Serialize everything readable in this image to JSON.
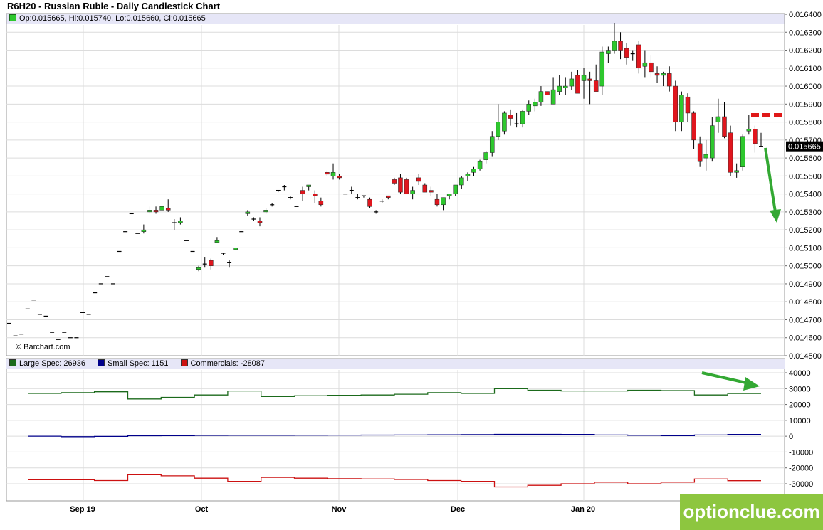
{
  "title": "R6H20 - Russian Ruble - Daily Candlestick Chart",
  "ohlc_readout": "Op:0.015665, Hi:0.015740, Lo:0.015660, Cl:0.015665",
  "copyright": "© Barchart.com",
  "watermark": "optionclue.com",
  "last_price_label": "0.015665",
  "colors": {
    "up": "#2ec82e",
    "down": "#e0161e",
    "wick": "#000000",
    "large_spec": "#1b6a1b",
    "small_spec": "#00008b",
    "commercials": "#cc1111",
    "grid": "#dcdcdc",
    "annotation_red": "#e01818",
    "annotation_green": "#33a833",
    "brand": "#8dc63f"
  },
  "cot_legend": [
    {
      "label": "Large Spec: 26936",
      "color": "#1b6a1b"
    },
    {
      "label": "Small Spec: 1151",
      "color": "#00008b"
    },
    {
      "label": "Commercials: -28087",
      "color": "#cc1111"
    }
  ],
  "chart_data": [
    {
      "type": "candlestick",
      "title": "R6H20 - Russian Ruble - Daily Candlestick Chart",
      "x_tick_labels": [
        "Sep 19",
        "Oct",
        "Nov",
        "Dec",
        "Jan 20"
      ],
      "ylim": [
        0.0145,
        0.0164
      ],
      "y_ticks": [
        0.0164,
        0.0163,
        0.0162,
        0.0161,
        0.016,
        0.0159,
        0.0158,
        0.0157,
        0.0156,
        0.0155,
        0.0154,
        0.0153,
        0.0152,
        0.0151,
        0.015,
        0.0149,
        0.0148,
        0.0147,
        0.0146,
        0.0145
      ],
      "y_tick_labels": [
        "0.016400",
        "0.016300",
        "0.016200",
        "0.016100",
        "0.016000",
        "0.015900",
        "0.015800",
        "0.015700",
        "0.015600",
        "0.015500",
        "0.015400",
        "0.015300",
        "0.015200",
        "0.015100",
        "0.015000",
        "0.014900",
        "0.014800",
        "0.014700",
        "0.014600",
        "0.014500"
      ],
      "grid": true,
      "last": 0.015665,
      "candles": [
        {
          "o": 0.01468,
          "h": 0.01468,
          "l": 0.01468,
          "c": 0.01468
        },
        {
          "o": 0.01461,
          "h": 0.01461,
          "l": 0.01461,
          "c": 0.01461
        },
        {
          "o": 0.01462,
          "h": 0.01462,
          "l": 0.01462,
          "c": 0.01462
        },
        {
          "o": 0.01476,
          "h": 0.01476,
          "l": 0.01476,
          "c": 0.01476
        },
        {
          "o": 0.01481,
          "h": 0.01481,
          "l": 0.01481,
          "c": 0.01481
        },
        {
          "o": 0.01473,
          "h": 0.01473,
          "l": 0.01473,
          "c": 0.01473
        },
        {
          "o": 0.01472,
          "h": 0.01472,
          "l": 0.01472,
          "c": 0.01472
        },
        {
          "o": 0.01463,
          "h": 0.01463,
          "l": 0.01463,
          "c": 0.01463
        },
        {
          "o": 0.01459,
          "h": 0.01459,
          "l": 0.01459,
          "c": 0.01459
        },
        {
          "o": 0.01463,
          "h": 0.01463,
          "l": 0.01463,
          "c": 0.01463
        },
        {
          "o": 0.0146,
          "h": 0.0146,
          "l": 0.0146,
          "c": 0.0146
        },
        {
          "o": 0.0146,
          "h": 0.0146,
          "l": 0.0146,
          "c": 0.0146
        },
        {
          "o": 0.01474,
          "h": 0.01474,
          "l": 0.01474,
          "c": 0.01474
        },
        {
          "o": 0.01473,
          "h": 0.01473,
          "l": 0.01473,
          "c": 0.01473
        },
        {
          "o": 0.01485,
          "h": 0.01485,
          "l": 0.01485,
          "c": 0.01485
        },
        {
          "o": 0.0149,
          "h": 0.0149,
          "l": 0.0149,
          "c": 0.0149
        },
        {
          "o": 0.01494,
          "h": 0.01494,
          "l": 0.01494,
          "c": 0.01494
        },
        {
          "o": 0.0149,
          "h": 0.0149,
          "l": 0.0149,
          "c": 0.0149
        },
        {
          "o": 0.01508,
          "h": 0.01508,
          "l": 0.01508,
          "c": 0.01508
        },
        {
          "o": 0.01519,
          "h": 0.01519,
          "l": 0.01519,
          "c": 0.01519
        },
        {
          "o": 0.01529,
          "h": 0.01529,
          "l": 0.01529,
          "c": 0.01529
        },
        {
          "o": 0.01518,
          "h": 0.01518,
          "l": 0.01518,
          "c": 0.01518
        },
        {
          "o": 0.01519,
          "h": 0.01523,
          "l": 0.01518,
          "c": 0.0152
        },
        {
          "o": 0.0153,
          "h": 0.01533,
          "l": 0.01529,
          "c": 0.01531
        },
        {
          "o": 0.01531,
          "h": 0.01533,
          "l": 0.01529,
          "c": 0.0153
        },
        {
          "o": 0.01531,
          "h": 0.01533,
          "l": 0.01531,
          "c": 0.01533
        },
        {
          "o": 0.01532,
          "h": 0.01537,
          "l": 0.0153,
          "c": 0.01531
        },
        {
          "o": 0.01524,
          "h": 0.01526,
          "l": 0.0152,
          "c": 0.01524
        },
        {
          "o": 0.01524,
          "h": 0.01527,
          "l": 0.01523,
          "c": 0.01525
        },
        {
          "o": 0.01514,
          "h": 0.01514,
          "l": 0.01514,
          "c": 0.01514
        },
        {
          "o": 0.01508,
          "h": 0.01508,
          "l": 0.01508,
          "c": 0.01508
        },
        {
          "o": 0.01498,
          "h": 0.015,
          "l": 0.01497,
          "c": 0.01499
        },
        {
          "o": 0.01501,
          "h": 0.01505,
          "l": 0.01499,
          "c": 0.01501
        },
        {
          "o": 0.01503,
          "h": 0.01504,
          "l": 0.01498,
          "c": 0.015
        },
        {
          "o": 0.01513,
          "h": 0.01516,
          "l": 0.01513,
          "c": 0.01514
        },
        {
          "o": 0.01507,
          "h": 0.01507,
          "l": 0.01506,
          "c": 0.01507
        },
        {
          "o": 0.01502,
          "h": 0.01503,
          "l": 0.01499,
          "c": 0.01502
        },
        {
          "o": 0.01509,
          "h": 0.0151,
          "l": 0.01509,
          "c": 0.0151
        },
        {
          "o": 0.01519,
          "h": 0.01519,
          "l": 0.01519,
          "c": 0.01519
        },
        {
          "o": 0.01529,
          "h": 0.01531,
          "l": 0.01528,
          "c": 0.0153
        },
        {
          "o": 0.01526,
          "h": 0.01527,
          "l": 0.01525,
          "c": 0.01526
        },
        {
          "o": 0.01525,
          "h": 0.01527,
          "l": 0.01522,
          "c": 0.01524
        },
        {
          "o": 0.0153,
          "h": 0.01532,
          "l": 0.01529,
          "c": 0.01531
        },
        {
          "o": 0.01534,
          "h": 0.01535,
          "l": 0.01533,
          "c": 0.01534
        },
        {
          "o": 0.01542,
          "h": 0.01542,
          "l": 0.01541,
          "c": 0.01542
        },
        {
          "o": 0.01544,
          "h": 0.01545,
          "l": 0.01542,
          "c": 0.01544
        },
        {
          "o": 0.01538,
          "h": 0.01539,
          "l": 0.01537,
          "c": 0.01538
        },
        {
          "o": 0.01533,
          "h": 0.01533,
          "l": 0.01533,
          "c": 0.01533
        },
        {
          "o": 0.01542,
          "h": 0.01544,
          "l": 0.01536,
          "c": 0.0154
        },
        {
          "o": 0.01544,
          "h": 0.01545,
          "l": 0.01542,
          "c": 0.01545
        },
        {
          "o": 0.0154,
          "h": 0.01542,
          "l": 0.01535,
          "c": 0.01539
        },
        {
          "o": 0.01536,
          "h": 0.01538,
          "l": 0.01533,
          "c": 0.01534
        },
        {
          "o": 0.01552,
          "h": 0.01553,
          "l": 0.0155,
          "c": 0.01551
        },
        {
          "o": 0.0155,
          "h": 0.01557,
          "l": 0.01548,
          "c": 0.01552
        },
        {
          "o": 0.0155,
          "h": 0.01551,
          "l": 0.01548,
          "c": 0.01549
        },
        {
          "o": 0.0154,
          "h": 0.0154,
          "l": 0.0154,
          "c": 0.0154
        },
        {
          "o": 0.01542,
          "h": 0.01544,
          "l": 0.0154,
          "c": 0.01542
        },
        {
          "o": 0.01538,
          "h": 0.0154,
          "l": 0.01537,
          "c": 0.01538
        },
        {
          "o": 0.01539,
          "h": 0.01539,
          "l": 0.01538,
          "c": 0.01539
        },
        {
          "o": 0.01537,
          "h": 0.01538,
          "l": 0.01532,
          "c": 0.01533
        },
        {
          "o": 0.0153,
          "h": 0.01531,
          "l": 0.01529,
          "c": 0.0153
        },
        {
          "o": 0.01536,
          "h": 0.01537,
          "l": 0.01535,
          "c": 0.01536
        },
        {
          "o": 0.01539,
          "h": 0.01539,
          "l": 0.01537,
          "c": 0.01538
        },
        {
          "o": 0.01548,
          "h": 0.01549,
          "l": 0.01545,
          "c": 0.01546
        },
        {
          "o": 0.01549,
          "h": 0.01551,
          "l": 0.0154,
          "c": 0.01541
        },
        {
          "o": 0.01548,
          "h": 0.01549,
          "l": 0.0154,
          "c": 0.0154
        },
        {
          "o": 0.0154,
          "h": 0.01544,
          "l": 0.01537,
          "c": 0.01542
        },
        {
          "o": 0.01549,
          "h": 0.01551,
          "l": 0.01545,
          "c": 0.01547
        },
        {
          "o": 0.01545,
          "h": 0.01546,
          "l": 0.01541,
          "c": 0.01541
        },
        {
          "o": 0.01542,
          "h": 0.01544,
          "l": 0.01539,
          "c": 0.01541
        },
        {
          "o": 0.01537,
          "h": 0.0154,
          "l": 0.01533,
          "c": 0.01534
        },
        {
          "o": 0.01534,
          "h": 0.01538,
          "l": 0.01531,
          "c": 0.01538
        },
        {
          "o": 0.01539,
          "h": 0.0154,
          "l": 0.01537,
          "c": 0.0154
        },
        {
          "o": 0.0154,
          "h": 0.01545,
          "l": 0.01539,
          "c": 0.01545
        },
        {
          "o": 0.01545,
          "h": 0.0155,
          "l": 0.01543,
          "c": 0.01549
        },
        {
          "o": 0.0155,
          "h": 0.01552,
          "l": 0.01547,
          "c": 0.01551
        },
        {
          "o": 0.01552,
          "h": 0.01555,
          "l": 0.0155,
          "c": 0.01554
        },
        {
          "o": 0.01554,
          "h": 0.01559,
          "l": 0.01553,
          "c": 0.01558
        },
        {
          "o": 0.01559,
          "h": 0.01564,
          "l": 0.01557,
          "c": 0.01563
        },
        {
          "o": 0.01563,
          "h": 0.01575,
          "l": 0.01561,
          "c": 0.01572
        },
        {
          "o": 0.01572,
          "h": 0.0159,
          "l": 0.0157,
          "c": 0.0158
        },
        {
          "o": 0.01575,
          "h": 0.01586,
          "l": 0.01573,
          "c": 0.01585
        },
        {
          "o": 0.01584,
          "h": 0.01587,
          "l": 0.01578,
          "c": 0.01582
        },
        {
          "o": 0.01579,
          "h": 0.01585,
          "l": 0.01577,
          "c": 0.01579
        },
        {
          "o": 0.01579,
          "h": 0.01587,
          "l": 0.01577,
          "c": 0.01586
        },
        {
          "o": 0.01586,
          "h": 0.01592,
          "l": 0.01584,
          "c": 0.0159
        },
        {
          "o": 0.01589,
          "h": 0.01593,
          "l": 0.01586,
          "c": 0.01591
        },
        {
          "o": 0.01591,
          "h": 0.016,
          "l": 0.01589,
          "c": 0.01597
        },
        {
          "o": 0.01597,
          "h": 0.01602,
          "l": 0.0159,
          "c": 0.01595
        },
        {
          "o": 0.0159,
          "h": 0.01605,
          "l": 0.0159,
          "c": 0.01598
        },
        {
          "o": 0.01597,
          "h": 0.01606,
          "l": 0.01595,
          "c": 0.016
        },
        {
          "o": 0.01599,
          "h": 0.01605,
          "l": 0.01595,
          "c": 0.016
        },
        {
          "o": 0.016,
          "h": 0.01608,
          "l": 0.01598,
          "c": 0.01604
        },
        {
          "o": 0.01606,
          "h": 0.01609,
          "l": 0.01597,
          "c": 0.01596
        },
        {
          "o": 0.01603,
          "h": 0.0161,
          "l": 0.01593,
          "c": 0.01606
        },
        {
          "o": 0.01604,
          "h": 0.01608,
          "l": 0.0159,
          "c": 0.01603
        },
        {
          "o": 0.01603,
          "h": 0.01612,
          "l": 0.01598,
          "c": 0.01597
        },
        {
          "o": 0.016,
          "h": 0.01622,
          "l": 0.01595,
          "c": 0.01619
        },
        {
          "o": 0.01618,
          "h": 0.01622,
          "l": 0.01613,
          "c": 0.0162
        },
        {
          "o": 0.0162,
          "h": 0.01635,
          "l": 0.01618,
          "c": 0.01625
        },
        {
          "o": 0.01625,
          "h": 0.0163,
          "l": 0.01615,
          "c": 0.0162
        },
        {
          "o": 0.01621,
          "h": 0.01624,
          "l": 0.01612,
          "c": 0.01616
        },
        {
          "o": 0.01618,
          "h": 0.0162,
          "l": 0.01614,
          "c": 0.01618
        },
        {
          "o": 0.01623,
          "h": 0.01625,
          "l": 0.01607,
          "c": 0.0161
        },
        {
          "o": 0.01611,
          "h": 0.0162,
          "l": 0.01605,
          "c": 0.01613
        },
        {
          "o": 0.01613,
          "h": 0.01617,
          "l": 0.01605,
          "c": 0.01608
        },
        {
          "o": 0.01607,
          "h": 0.01611,
          "l": 0.01602,
          "c": 0.01606
        },
        {
          "o": 0.01606,
          "h": 0.01608,
          "l": 0.016,
          "c": 0.01607
        },
        {
          "o": 0.01607,
          "h": 0.01611,
          "l": 0.01597,
          "c": 0.016
        },
        {
          "o": 0.016,
          "h": 0.01603,
          "l": 0.01575,
          "c": 0.0158
        },
        {
          "o": 0.0158,
          "h": 0.01597,
          "l": 0.01575,
          "c": 0.01595
        },
        {
          "o": 0.01594,
          "h": 0.01596,
          "l": 0.0158,
          "c": 0.01585
        },
        {
          "o": 0.01585,
          "h": 0.01586,
          "l": 0.01565,
          "c": 0.0157
        },
        {
          "o": 0.01568,
          "h": 0.01572,
          "l": 0.01555,
          "c": 0.01558
        },
        {
          "o": 0.0156,
          "h": 0.0157,
          "l": 0.01553,
          "c": 0.01562
        },
        {
          "o": 0.0156,
          "h": 0.01583,
          "l": 0.01558,
          "c": 0.01578
        },
        {
          "o": 0.0158,
          "h": 0.01593,
          "l": 0.01574,
          "c": 0.01583
        },
        {
          "o": 0.01583,
          "h": 0.01591,
          "l": 0.01571,
          "c": 0.01572
        },
        {
          "o": 0.01574,
          "h": 0.01578,
          "l": 0.0155,
          "c": 0.01552
        },
        {
          "o": 0.01552,
          "h": 0.01557,
          "l": 0.01549,
          "c": 0.01553
        },
        {
          "o": 0.01555,
          "h": 0.01573,
          "l": 0.01553,
          "c": 0.01572
        },
        {
          "o": 0.01575,
          "h": 0.01584,
          "l": 0.01573,
          "c": 0.01576
        },
        {
          "o": 0.01576,
          "h": 0.01578,
          "l": 0.01563,
          "c": 0.01568
        },
        {
          "o": 0.015665,
          "h": 0.01574,
          "l": 0.01566,
          "c": 0.015665
        }
      ]
    },
    {
      "type": "line",
      "title": "COT positions",
      "ylim": [
        -35000,
        45000
      ],
      "y_ticks": [
        40000,
        30000,
        20000,
        10000,
        0,
        -10000,
        -20000,
        -30000
      ],
      "y_tick_labels": [
        "40000",
        "30000",
        "20000",
        "10000",
        "0",
        "-10000",
        "-20000",
        "-30000"
      ],
      "grid": true,
      "series": [
        {
          "name": "Large Spec: 26936",
          "color": "#1b6a1b",
          "step": true,
          "values": [
            27000,
            27500,
            28000,
            23500,
            24500,
            26000,
            28500,
            25000,
            25500,
            25800,
            26000,
            26500,
            27500,
            27000,
            30000,
            29000,
            28500,
            28500,
            29000,
            28800,
            26000,
            26936
          ]
        },
        {
          "name": "Small Spec: 1151",
          "color": "#00008b",
          "step": true,
          "values": [
            0,
            -300,
            -100,
            300,
            400,
            500,
            600,
            600,
            650,
            700,
            750,
            800,
            900,
            1000,
            1200,
            1200,
            1100,
            800,
            600,
            400,
            800,
            1151
          ]
        },
        {
          "name": "Commercials: -28087",
          "color": "#cc1111",
          "step": true,
          "values": [
            -27500,
            -27500,
            -28000,
            -24000,
            -25000,
            -26500,
            -28500,
            -26000,
            -26500,
            -26800,
            -27000,
            -27300,
            -28000,
            -28500,
            -32000,
            -31000,
            -30000,
            -29000,
            -30000,
            -29000,
            -27000,
            -28087
          ]
        }
      ]
    }
  ]
}
